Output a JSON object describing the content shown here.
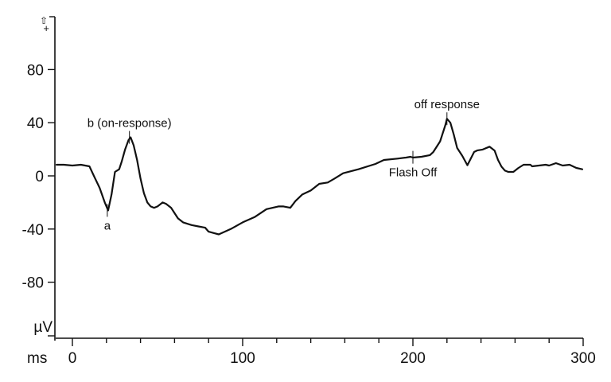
{
  "chart_data": {
    "type": "line",
    "title": "",
    "xlabel": "ms",
    "ylabel": "µV",
    "xlim": [
      -10,
      300
    ],
    "ylim": [
      -120,
      118
    ],
    "grid": false,
    "legend": null,
    "x_ticks": [
      0,
      100,
      200,
      300
    ],
    "x_minor_step": 20,
    "y_ticks": [
      -80,
      -40,
      0,
      40,
      80
    ],
    "y_top_marker": "+",
    "series": [
      {
        "name": "ERG trace",
        "color": "#111111",
        "x": [
          -9.3,
          -5,
          0,
          5,
          7.5,
          10,
          13,
          16,
          19,
          21,
          23,
          25,
          27.5,
          29,
          31,
          33,
          34.2,
          36,
          38,
          40,
          42,
          44,
          46,
          48,
          50,
          53,
          55,
          58,
          62,
          65,
          70,
          74,
          78,
          80,
          83,
          86,
          93,
          100,
          107,
          114,
          121,
          124,
          128,
          131,
          135,
          140,
          145,
          150,
          154,
          159,
          168,
          178,
          183,
          191,
          196,
          198.6,
          200,
          205,
          210,
          212,
          216,
          219,
          220,
          222,
          224,
          226,
          229,
          232,
          236,
          238,
          241,
          245,
          248,
          250,
          252,
          254,
          256,
          259,
          262,
          265,
          269,
          270,
          274,
          278,
          280,
          284,
          288,
          292,
          296,
          299.5
        ],
        "y": [
          8.4,
          8.4,
          7.8,
          8.4,
          7.8,
          7.2,
          -1,
          -9,
          -20,
          -26,
          -14,
          3,
          5,
          11,
          20,
          27,
          29,
          23,
          12,
          -2,
          -13,
          -20,
          -23,
          -24,
          -23,
          -20,
          -21,
          -24,
          -32,
          -35,
          -37,
          -38,
          -39,
          -42,
          -43,
          -44,
          -40,
          -35,
          -31,
          -25,
          -23,
          -23,
          -24,
          -19,
          -14,
          -11,
          -6,
          -5,
          -2,
          2,
          5,
          9,
          12,
          13,
          13.8,
          14.4,
          13.8,
          14.4,
          15.6,
          18,
          26,
          38,
          43,
          40,
          31,
          21,
          15,
          8,
          18,
          19.2,
          19.8,
          22,
          19,
          12,
          7,
          4,
          3,
          3,
          6,
          8.4,
          8.4,
          7.2,
          7.8,
          8.4,
          7.8,
          9.6,
          7.8,
          8.4,
          6,
          5
        ]
      }
    ],
    "annotations": [
      {
        "text": "a",
        "x": 20.5,
        "y": -26,
        "position": "below"
      },
      {
        "text": "b (on-response)",
        "x": 33.5,
        "y": 29,
        "position": "above"
      },
      {
        "text": "Flash Off",
        "x": 200,
        "y": 14,
        "position": "below"
      },
      {
        "text": "off response",
        "x": 220,
        "y": 43,
        "position": "above"
      }
    ]
  },
  "axes": {
    "x_unit_label": "ms",
    "y_unit_label": "µV",
    "x_tick_labels": [
      "0",
      "100",
      "200",
      "300"
    ],
    "y_tick_labels": [
      "80",
      "40",
      "0",
      "-40",
      "-80"
    ],
    "top_marker": "+"
  },
  "labels": {
    "a": "a",
    "b": "b (on-response)",
    "flash_off": "Flash Off",
    "off_response": "off response"
  }
}
